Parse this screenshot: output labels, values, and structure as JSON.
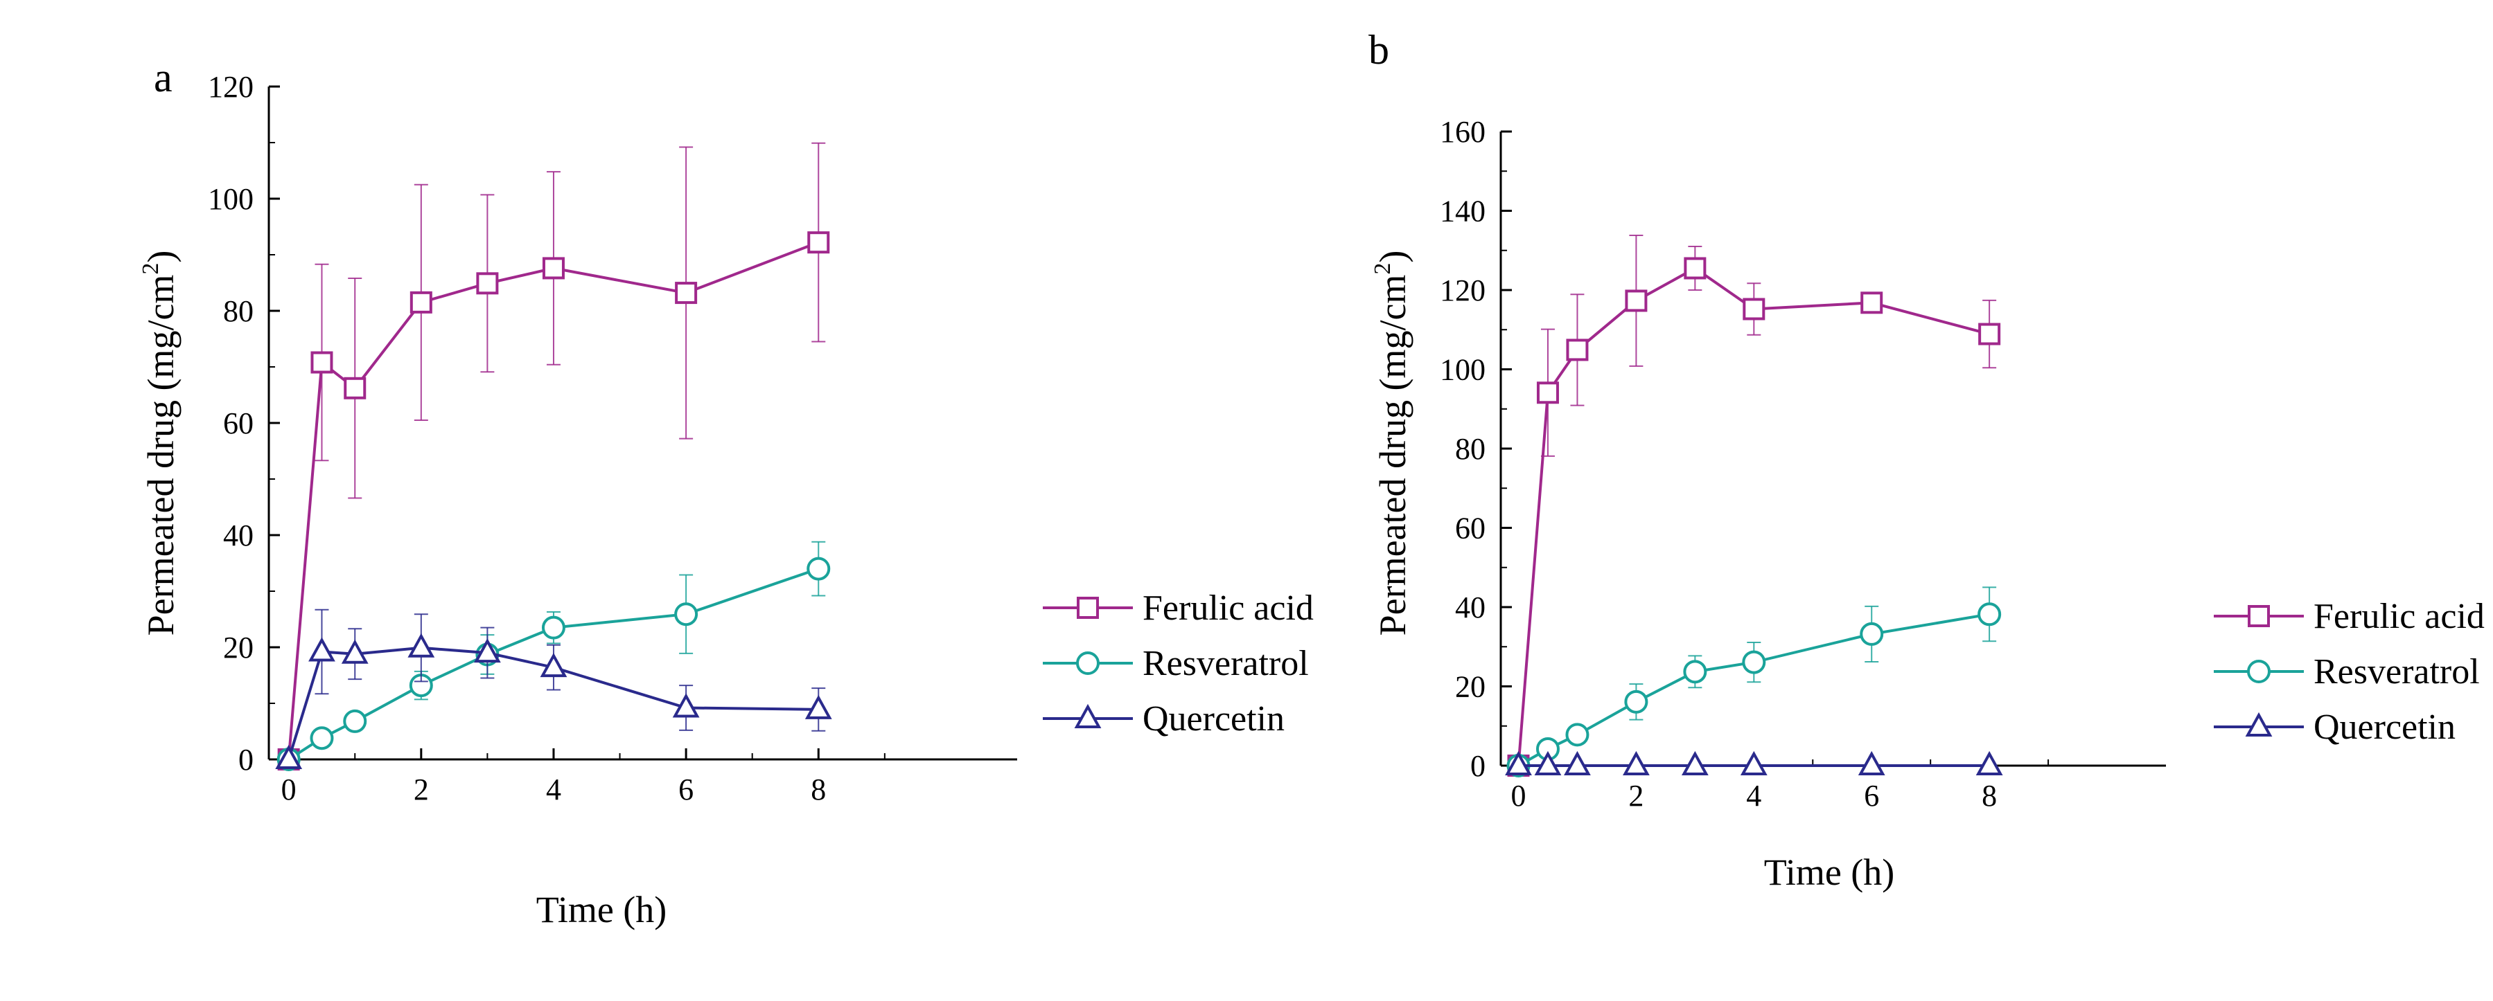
{
  "chart_data": [
    {
      "type": "line",
      "panel_label": "a",
      "xlabel": "Time (h)",
      "ylabel_main": "Permeated drug ",
      "ylabel_paren_open": "(",
      "ylabel_unit": "mg/cm",
      "ylabel_sup": "2",
      "ylabel_paren_close": ")",
      "xlim": [
        -0.3,
        11
      ],
      "ylim": [
        0,
        120
      ],
      "xticks": [
        0,
        2,
        4,
        6,
        8
      ],
      "yticks": [
        0,
        20,
        40,
        60,
        80,
        100,
        120
      ],
      "legend_position": "right",
      "series": [
        {
          "name": "Ferulic acid",
          "marker": "square",
          "color": "#a0288c",
          "x": [
            0,
            0.5,
            1,
            2,
            3,
            4,
            6,
            8
          ],
          "y": [
            0,
            70.8,
            66.2,
            81.5,
            84.9,
            87.6,
            83.2,
            92.2
          ],
          "err": [
            0,
            17.5,
            19.6,
            21.0,
            15.8,
            17.2,
            26.0,
            17.7
          ]
        },
        {
          "name": "Resveratrol",
          "marker": "circle",
          "color": "#1aa39a",
          "x": [
            0,
            0.5,
            1,
            2,
            3,
            4,
            6,
            8
          ],
          "y": [
            0,
            3.8,
            6.8,
            13.2,
            18.7,
            23.5,
            25.9,
            34.0
          ],
          "err": [
            0,
            1.0,
            1.5,
            2.5,
            3.5,
            2.8,
            7.0,
            4.8
          ]
        },
        {
          "name": "Quercetin",
          "marker": "triangle",
          "color": "#2a2a8c",
          "x": [
            0,
            0.5,
            1,
            2,
            3,
            4,
            6,
            8
          ],
          "y": [
            0,
            19.2,
            18.8,
            19.9,
            19.0,
            16.4,
            9.2,
            8.9
          ],
          "err": [
            0,
            7.5,
            4.5,
            6.0,
            4.5,
            4.0,
            4.0,
            3.8
          ]
        }
      ]
    },
    {
      "type": "line",
      "panel_label": "b",
      "xlabel": "Time (h)",
      "ylabel_main": "Permeated drug ",
      "ylabel_paren_open": "(",
      "ylabel_unit": "mg/cm",
      "ylabel_sup": "2",
      "ylabel_paren_close": ")",
      "xlim": [
        -0.3,
        11
      ],
      "ylim": [
        0,
        160
      ],
      "xticks": [
        0,
        2,
        4,
        6,
        8
      ],
      "yticks": [
        0,
        20,
        40,
        60,
        80,
        100,
        120,
        140,
        160
      ],
      "legend_position": "right",
      "series": [
        {
          "name": "Ferulic acid",
          "marker": "square",
          "color": "#a0288c",
          "x": [
            0,
            0.5,
            1,
            2,
            3,
            4,
            6,
            8
          ],
          "y": [
            0,
            94.1,
            104.9,
            117.3,
            125.5,
            115.2,
            116.8,
            108.9
          ],
          "err": [
            0,
            16.0,
            14.0,
            16.5,
            5.5,
            6.5,
            2.5,
            8.5
          ]
        },
        {
          "name": "Resveratrol",
          "marker": "circle",
          "color": "#1aa39a",
          "x": [
            0,
            0.5,
            1,
            2,
            3,
            4,
            6,
            8
          ],
          "y": [
            0,
            4.2,
            7.8,
            16.1,
            23.7,
            26.1,
            33.2,
            38.2
          ],
          "err": [
            0,
            1.2,
            1.8,
            4.5,
            4.0,
            5.0,
            7.0,
            6.8
          ]
        },
        {
          "name": "Quercetin",
          "marker": "triangle",
          "color": "#2a2a8c",
          "x": [
            0,
            0.5,
            1,
            2,
            3,
            4,
            6,
            8
          ],
          "y": [
            0,
            0,
            0,
            0,
            0,
            0,
            0,
            0
          ],
          "err": [
            0,
            0,
            0,
            0,
            0,
            0,
            0,
            0
          ]
        }
      ]
    }
  ]
}
